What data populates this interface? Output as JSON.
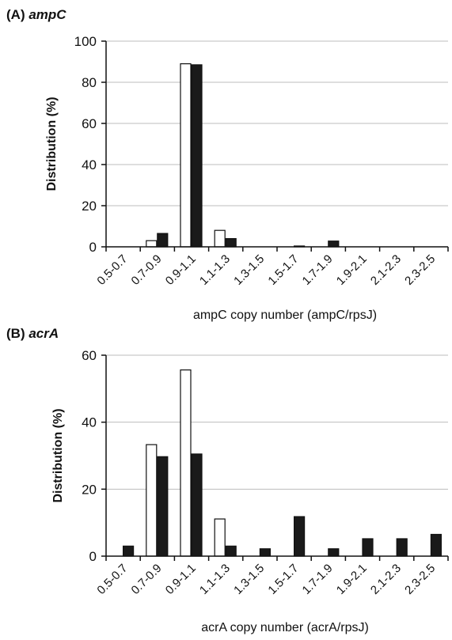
{
  "charts": [
    {
      "panel_prefix": "(A)",
      "panel_gene": "ampC",
      "colors": {
        "series1_fill": "#ffffff",
        "series2_fill": "#1a1a1a",
        "grid": "#bdbdbd",
        "axis": "#111111"
      }
    },
    {
      "panel_prefix": "(B)",
      "panel_gene": "acrA",
      "colors": {
        "series1_fill": "#ffffff",
        "series2_fill": "#1a1a1a",
        "grid": "#bdbdbd",
        "axis": "#111111"
      }
    }
  ],
  "chart_data": [
    {
      "type": "bar",
      "title": "(A) ampC",
      "xlabel": "ampC copy number (ampC/rpsJ)",
      "ylabel": "Distribution (%)",
      "ylim": [
        0,
        100
      ],
      "yticks": [
        "0",
        "20",
        "40",
        "60",
        "80",
        "100"
      ],
      "grid": true,
      "categories": [
        "0.5-0.7",
        "0.7-0.9",
        "0.9-1.1",
        "1.1-1.3",
        "1.3-1.5",
        "1.5-1.7",
        "1.7-1.9",
        "1.9-2.1",
        "2.1-2.3",
        "2.3-2.5"
      ],
      "series": [
        {
          "values": [
            0,
            3,
            89,
            8,
            0,
            0,
            0,
            0,
            0,
            0
          ]
        },
        {
          "values": [
            0,
            6.5,
            88.5,
            4,
            0,
            0.4,
            2.8,
            0,
            0,
            0
          ]
        }
      ]
    },
    {
      "type": "bar",
      "title": "(B) acrA",
      "xlabel": "acrA copy number (acrA/rpsJ)",
      "ylabel": "Distribution (%)",
      "ylim": [
        0,
        60
      ],
      "yticks": [
        "0",
        "20",
        "40",
        "60"
      ],
      "grid": true,
      "categories": [
        "0.5-0.7",
        "0.7-0.9",
        "0.9-1.1",
        "1.1-1.3",
        "1.3-1.5",
        "1.5-1.7",
        "1.7-1.9",
        "1.9-2.1",
        "2.1-2.3",
        "2.3-2.5"
      ],
      "series": [
        {
          "values": [
            0,
            33.3,
            55.6,
            11.1,
            0,
            0,
            0,
            0,
            0,
            0
          ]
        },
        {
          "values": [
            3,
            29.7,
            30.5,
            3,
            2.2,
            11.8,
            2.2,
            5.2,
            5.2,
            6.5
          ]
        }
      ]
    }
  ]
}
